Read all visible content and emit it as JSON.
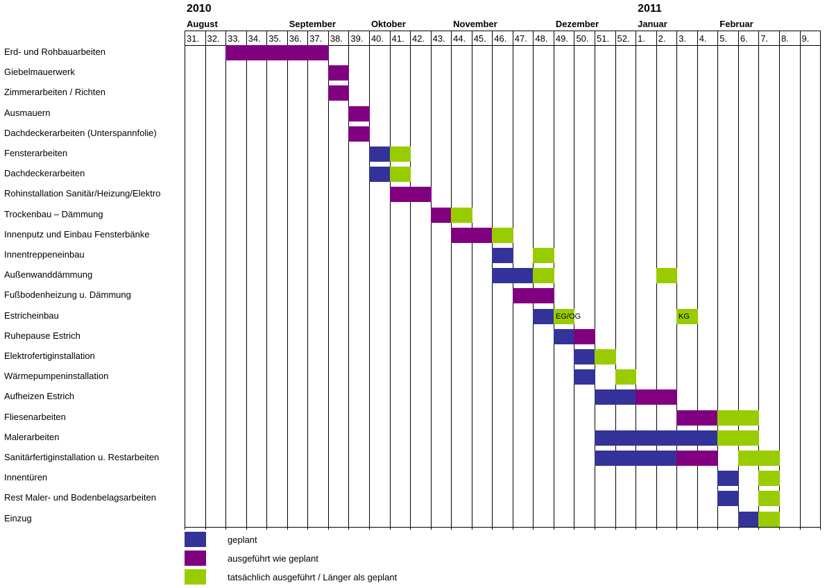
{
  "colors": {
    "geplant": "#333399",
    "ausgefuehrt": "#800080",
    "tatsaechlich": "#99cc00"
  },
  "chart_data": {
    "type": "gantt",
    "years": [
      {
        "label": "2010",
        "week": "31."
      },
      {
        "label": "2011",
        "week": "1."
      }
    ],
    "months": [
      {
        "label": "August",
        "week": "31."
      },
      {
        "label": "September",
        "week": "36."
      },
      {
        "label": "Oktober",
        "week": "40."
      },
      {
        "label": "November",
        "week": "44."
      },
      {
        "label": "Dezember",
        "week": "49."
      },
      {
        "label": "Januar",
        "week": "1."
      },
      {
        "label": "Februar",
        "week": "5."
      }
    ],
    "weeks": [
      "31.",
      "32.",
      "33.",
      "34.",
      "35.",
      "36.",
      "37.",
      "38.",
      "39.",
      "40.",
      "41.",
      "42.",
      "43.",
      "44.",
      "45.",
      "46.",
      "47.",
      "48.",
      "49.",
      "50.",
      "51.",
      "52.",
      "1.",
      "2.",
      "3.",
      "4.",
      "5.",
      "6.",
      "7.",
      "8.",
      "9."
    ],
    "tasks": [
      {
        "name": "Erd- und Rohbauarbeiten",
        "bars": [
          {
            "status": "ausgefuehrt",
            "from": "33.",
            "to": "37."
          }
        ]
      },
      {
        "name": "Giebelmauerwerk",
        "bars": [
          {
            "status": "ausgefuehrt",
            "from": "38.",
            "to": "38."
          }
        ]
      },
      {
        "name": "Zimmerarbeiten / Richten",
        "bars": [
          {
            "status": "ausgefuehrt",
            "from": "38.",
            "to": "38."
          }
        ]
      },
      {
        "name": "Ausmauern",
        "bars": [
          {
            "status": "ausgefuehrt",
            "from": "39.",
            "to": "39."
          }
        ]
      },
      {
        "name": "Dachdeckerarbeiten (Unterspannfolie)",
        "bars": [
          {
            "status": "ausgefuehrt",
            "from": "39.",
            "to": "39."
          }
        ]
      },
      {
        "name": "Fensterarbeiten",
        "bars": [
          {
            "status": "geplant",
            "from": "40.",
            "to": "40."
          },
          {
            "status": "tatsaechlich",
            "from": "41.",
            "to": "41."
          }
        ]
      },
      {
        "name": "Dachdeckerarbeiten",
        "bars": [
          {
            "status": "geplant",
            "from": "40.",
            "to": "40."
          },
          {
            "status": "tatsaechlich",
            "from": "41.",
            "to": "41."
          }
        ]
      },
      {
        "name": "Rohinstallation Sanitär/Heizung/Elektro",
        "bars": [
          {
            "status": "ausgefuehrt",
            "from": "41.",
            "to": "42."
          }
        ]
      },
      {
        "name": "Trockenbau – Dämmung",
        "bars": [
          {
            "status": "ausgefuehrt",
            "from": "43.",
            "to": "43."
          },
          {
            "status": "tatsaechlich",
            "from": "44.",
            "to": "44."
          }
        ]
      },
      {
        "name": "Innenputz und Einbau Fensterbänke",
        "bars": [
          {
            "status": "ausgefuehrt",
            "from": "44.",
            "to": "45."
          },
          {
            "status": "tatsaechlich",
            "from": "46.",
            "to": "46."
          }
        ]
      },
      {
        "name": "Innentreppeneinbau",
        "bars": [
          {
            "status": "geplant",
            "from": "46.",
            "to": "46."
          },
          {
            "status": "tatsaechlich",
            "from": "48.",
            "to": "48."
          }
        ]
      },
      {
        "name": "Außenwanddämmung",
        "bars": [
          {
            "status": "geplant",
            "from": "46.",
            "to": "47."
          },
          {
            "status": "tatsaechlich",
            "from": "48.",
            "to": "48."
          },
          {
            "status": "tatsaechlich",
            "from": "2.",
            "to": "2."
          }
        ]
      },
      {
        "name": "Fußbodenheizung u. Dämmung",
        "bars": [
          {
            "status": "ausgefuehrt",
            "from": "47.",
            "to": "48."
          }
        ]
      },
      {
        "name": "Estricheinbau",
        "bars": [
          {
            "status": "geplant",
            "from": "48.",
            "to": "48."
          },
          {
            "status": "tatsaechlich",
            "from": "49.",
            "to": "49.",
            "label": "EG/OG"
          },
          {
            "status": "tatsaechlich",
            "from": "3.",
            "to": "3.",
            "label": "KG"
          }
        ]
      },
      {
        "name": "Ruhepause Estrich",
        "bars": [
          {
            "status": "geplant",
            "from": "49.",
            "to": "49."
          },
          {
            "status": "ausgefuehrt",
            "from": "50.",
            "to": "50."
          }
        ]
      },
      {
        "name": "Elektrofertiginstallation",
        "bars": [
          {
            "status": "geplant",
            "from": "50.",
            "to": "50."
          },
          {
            "status": "tatsaechlich",
            "from": "51.",
            "to": "51."
          }
        ]
      },
      {
        "name": "Wärmepumpeninstallation",
        "bars": [
          {
            "status": "geplant",
            "from": "50.",
            "to": "50."
          },
          {
            "status": "tatsaechlich",
            "from": "52.",
            "to": "52."
          }
        ]
      },
      {
        "name": "Aufheizen Estrich",
        "bars": [
          {
            "status": "geplant",
            "from": "51.",
            "to": "52."
          },
          {
            "status": "ausgefuehrt",
            "from": "1.",
            "to": "2."
          }
        ]
      },
      {
        "name": "Fliesenarbeiten",
        "bars": [
          {
            "status": "ausgefuehrt",
            "from": "3.",
            "to": "4."
          },
          {
            "status": "tatsaechlich",
            "from": "5.",
            "to": "6."
          }
        ]
      },
      {
        "name": "Malerarbeiten",
        "bars": [
          {
            "status": "geplant",
            "from": "51.",
            "to": "4."
          },
          {
            "status": "tatsaechlich",
            "from": "5.",
            "to": "6."
          }
        ]
      },
      {
        "name": "Sanitärfertiginstallation u. Restarbeiten",
        "bars": [
          {
            "status": "geplant",
            "from": "51.",
            "to": "2."
          },
          {
            "status": "ausgefuehrt",
            "from": "3.",
            "to": "4."
          },
          {
            "status": "tatsaechlich",
            "from": "6.",
            "to": "7."
          }
        ]
      },
      {
        "name": "Innentüren",
        "bars": [
          {
            "status": "geplant",
            "from": "5.",
            "to": "5."
          },
          {
            "status": "tatsaechlich",
            "from": "7.",
            "to": "7."
          }
        ]
      },
      {
        "name": "Rest Maler- und Bodenbelagsarbeiten",
        "bars": [
          {
            "status": "geplant",
            "from": "5.",
            "to": "5."
          },
          {
            "status": "tatsaechlich",
            "from": "7.",
            "to": "7."
          }
        ]
      },
      {
        "name": "Einzug",
        "bars": [
          {
            "status": "geplant",
            "from": "6.",
            "to": "6."
          },
          {
            "status": "tatsaechlich",
            "from": "7.",
            "to": "7."
          }
        ]
      }
    ],
    "legend": [
      {
        "status": "geplant",
        "label": "geplant"
      },
      {
        "status": "ausgefuehrt",
        "label": "ausgeführt wie geplant"
      },
      {
        "status": "tatsaechlich",
        "label": "tatsächlich ausgeführt / Länger als geplant"
      }
    ],
    "legend_position": "bottom-left",
    "grid": true
  }
}
